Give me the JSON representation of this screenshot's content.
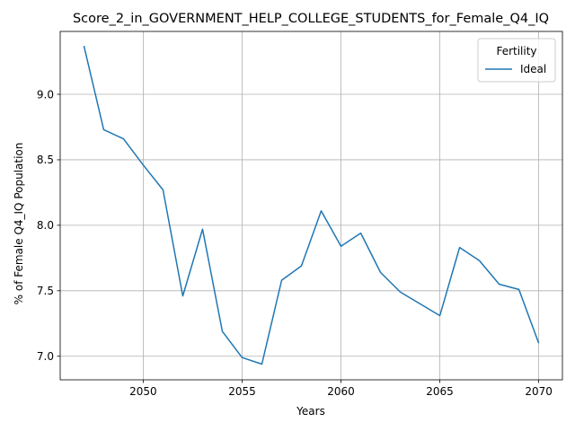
{
  "chart_data": {
    "type": "line",
    "title": "Score_2_in_GOVERNMENT_HELP_COLLEGE_STUDENTS_for_Female_Q4_IQ",
    "xlabel": "Years",
    "ylabel": "% of Female Q4_IQ Population",
    "xlim": [
      2045.8,
      2071.2
    ],
    "ylim": [
      6.82,
      9.48
    ],
    "xticks": [
      2050,
      2055,
      2060,
      2065,
      2070
    ],
    "xtick_labels": [
      "2050",
      "2055",
      "2060",
      "2065",
      "2070"
    ],
    "yticks": [
      7.0,
      7.5,
      8.0,
      8.5,
      9.0
    ],
    "ytick_labels": [
      "7.0",
      "7.5",
      "8.0",
      "8.5",
      "9.0"
    ],
    "grid": true,
    "legend": {
      "title": "Fertility",
      "placement": "top-right"
    },
    "series": [
      {
        "name": "Ideal",
        "color": "#1f77b4",
        "x": [
          2047,
          2048,
          2049,
          2050,
          2051,
          2052,
          2053,
          2054,
          2055,
          2056,
          2057,
          2058,
          2059,
          2060,
          2061,
          2062,
          2063,
          2064,
          2065,
          2066,
          2067,
          2068,
          2069,
          2070
        ],
        "y": [
          9.37,
          8.73,
          8.66,
          8.46,
          8.27,
          7.46,
          7.97,
          7.19,
          6.99,
          6.94,
          7.58,
          7.69,
          8.11,
          7.84,
          7.94,
          7.64,
          7.49,
          7.4,
          7.31,
          7.83,
          7.73,
          7.55,
          7.51,
          7.1
        ]
      }
    ]
  },
  "colors": {
    "grid": "#b0b0b0",
    "axis": "#000000",
    "legend_border": "#cccccc"
  }
}
